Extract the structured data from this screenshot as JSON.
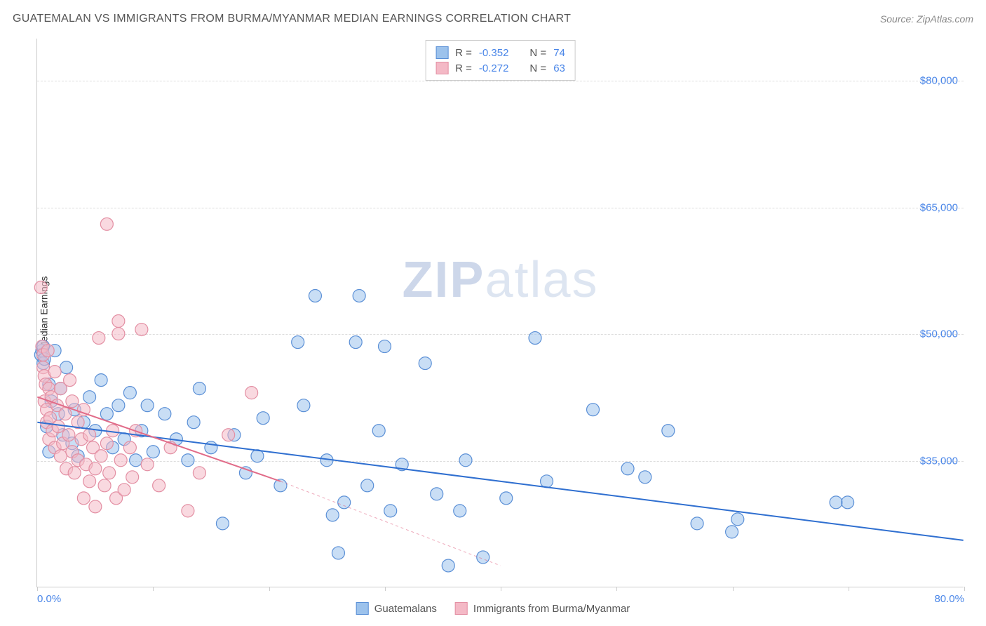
{
  "title": "GUATEMALAN VS IMMIGRANTS FROM BURMA/MYANMAR MEDIAN EARNINGS CORRELATION CHART",
  "source": "Source: ZipAtlas.com",
  "watermark_prefix": "ZIP",
  "watermark_suffix": "atlas",
  "chart": {
    "type": "scatter",
    "background_color": "#ffffff",
    "grid_color": "#dddddd",
    "axis_color": "#cccccc",
    "ylabel": "Median Earnings",
    "ylabel_fontsize": 14,
    "xlim": [
      0,
      80
    ],
    "ylim": [
      20000,
      85000
    ],
    "xticks": [
      0,
      10,
      20,
      30,
      40,
      50,
      60,
      70,
      80
    ],
    "xtick_labels": {
      "0": "0.0%",
      "80": "80.0%"
    },
    "yticks": [
      35000,
      50000,
      65000,
      80000
    ],
    "ytick_labels": [
      "$35,000",
      "$50,000",
      "$65,000",
      "$80,000"
    ],
    "tick_label_color": "#4a86e8",
    "tick_label_fontsize": 15,
    "point_radius": 9,
    "point_opacity": 0.55,
    "point_stroke_width": 1.2,
    "trend_line_width": 2,
    "trend_dash_width": 1,
    "series": [
      {
        "name": "Guatemalans",
        "fill_color": "#9cc2ec",
        "stroke_color": "#5a8fd6",
        "line_color": "#2f6fd0",
        "R": "-0.352",
        "N": "74",
        "trend": {
          "x1": 0,
          "y1": 39500,
          "x2": 80,
          "y2": 25500
        },
        "trend_dash": null,
        "points": [
          [
            0.3,
            47500
          ],
          [
            0.4,
            48000
          ],
          [
            0.5,
            48500
          ],
          [
            0.5,
            46500
          ],
          [
            0.6,
            47000
          ],
          [
            0.8,
            39000
          ],
          [
            1.0,
            44000
          ],
          [
            1.0,
            36000
          ],
          [
            1.2,
            42000
          ],
          [
            1.5,
            48000
          ],
          [
            1.8,
            40500
          ],
          [
            2.0,
            43500
          ],
          [
            2.2,
            38000
          ],
          [
            2.5,
            46000
          ],
          [
            3.0,
            37000
          ],
          [
            3.2,
            41000
          ],
          [
            3.5,
            35500
          ],
          [
            4.0,
            39500
          ],
          [
            4.5,
            42500
          ],
          [
            5.0,
            38500
          ],
          [
            5.5,
            44500
          ],
          [
            6.0,
            40500
          ],
          [
            6.5,
            36500
          ],
          [
            7.0,
            41500
          ],
          [
            7.5,
            37500
          ],
          [
            8.0,
            43000
          ],
          [
            8.5,
            35000
          ],
          [
            9.0,
            38500
          ],
          [
            9.5,
            41500
          ],
          [
            10.0,
            36000
          ],
          [
            11.0,
            40500
          ],
          [
            12.0,
            37500
          ],
          [
            13.0,
            35000
          ],
          [
            13.5,
            39500
          ],
          [
            14.0,
            43500
          ],
          [
            15.0,
            36500
          ],
          [
            16.0,
            27500
          ],
          [
            17.0,
            38000
          ],
          [
            18.0,
            33500
          ],
          [
            19.0,
            35500
          ],
          [
            19.5,
            40000
          ],
          [
            21.0,
            32000
          ],
          [
            22.5,
            49000
          ],
          [
            23.0,
            41500
          ],
          [
            24.0,
            54500
          ],
          [
            25.0,
            35000
          ],
          [
            25.5,
            28500
          ],
          [
            26.0,
            24000
          ],
          [
            26.5,
            30000
          ],
          [
            27.5,
            49000
          ],
          [
            27.8,
            54500
          ],
          [
            28.5,
            32000
          ],
          [
            29.5,
            38500
          ],
          [
            30.0,
            48500
          ],
          [
            30.5,
            29000
          ],
          [
            31.5,
            34500
          ],
          [
            33.5,
            46500
          ],
          [
            34.5,
            31000
          ],
          [
            35.5,
            22500
          ],
          [
            36.5,
            29000
          ],
          [
            37.0,
            35000
          ],
          [
            38.5,
            23500
          ],
          [
            40.5,
            30500
          ],
          [
            43.0,
            49500
          ],
          [
            44.0,
            32500
          ],
          [
            48.0,
            41000
          ],
          [
            51.0,
            34000
          ],
          [
            52.5,
            33000
          ],
          [
            54.5,
            38500
          ],
          [
            57.0,
            27500
          ],
          [
            60.0,
            26500
          ],
          [
            60.5,
            28000
          ],
          [
            69.0,
            30000
          ],
          [
            70.0,
            30000
          ]
        ]
      },
      {
        "name": "Immigrants from Burma/Myanmar",
        "fill_color": "#f4b9c6",
        "stroke_color": "#e38fa3",
        "line_color": "#e16b88",
        "R": "-0.272",
        "N": "63",
        "trend": {
          "x1": 0,
          "y1": 42500,
          "x2": 21,
          "y2": 32500
        },
        "trend_dash": {
          "x1": 21,
          "y1": 32500,
          "x2": 40,
          "y2": 22500
        },
        "points": [
          [
            0.3,
            55500
          ],
          [
            0.4,
            48500
          ],
          [
            0.5,
            47500
          ],
          [
            0.5,
            46000
          ],
          [
            0.6,
            45000
          ],
          [
            0.6,
            42000
          ],
          [
            0.7,
            44000
          ],
          [
            0.8,
            41000
          ],
          [
            0.8,
            39500
          ],
          [
            0.9,
            48000
          ],
          [
            1.0,
            43500
          ],
          [
            1.0,
            37500
          ],
          [
            1.1,
            40000
          ],
          [
            1.2,
            42500
          ],
          [
            1.3,
            38500
          ],
          [
            1.5,
            36500
          ],
          [
            1.5,
            45500
          ],
          [
            1.7,
            41500
          ],
          [
            1.8,
            39000
          ],
          [
            2.0,
            43500
          ],
          [
            2.0,
            35500
          ],
          [
            2.2,
            37000
          ],
          [
            2.4,
            40500
          ],
          [
            2.5,
            34000
          ],
          [
            2.7,
            38000
          ],
          [
            2.8,
            44500
          ],
          [
            3.0,
            36000
          ],
          [
            3.0,
            42000
          ],
          [
            3.2,
            33500
          ],
          [
            3.5,
            39500
          ],
          [
            3.5,
            35000
          ],
          [
            3.8,
            37500
          ],
          [
            4.0,
            41000
          ],
          [
            4.0,
            30500
          ],
          [
            4.2,
            34500
          ],
          [
            4.5,
            38000
          ],
          [
            4.5,
            32500
          ],
          [
            4.8,
            36500
          ],
          [
            5.0,
            34000
          ],
          [
            5.0,
            29500
          ],
          [
            5.3,
            49500
          ],
          [
            5.5,
            35500
          ],
          [
            5.8,
            32000
          ],
          [
            6.0,
            37000
          ],
          [
            6.0,
            63000
          ],
          [
            6.2,
            33500
          ],
          [
            6.5,
            38500
          ],
          [
            6.8,
            30500
          ],
          [
            7.0,
            50000
          ],
          [
            7.2,
            35000
          ],
          [
            7.5,
            31500
          ],
          [
            8.0,
            36500
          ],
          [
            8.2,
            33000
          ],
          [
            8.5,
            38500
          ],
          [
            9.0,
            50500
          ],
          [
            9.5,
            34500
          ],
          [
            10.5,
            32000
          ],
          [
            11.5,
            36500
          ],
          [
            13.0,
            29000
          ],
          [
            14.0,
            33500
          ],
          [
            16.5,
            38000
          ],
          [
            18.5,
            43000
          ],
          [
            7.0,
            51500
          ]
        ]
      }
    ],
    "legend_top_stats": [
      {
        "series_index": 0
      },
      {
        "series_index": 1
      }
    ]
  }
}
